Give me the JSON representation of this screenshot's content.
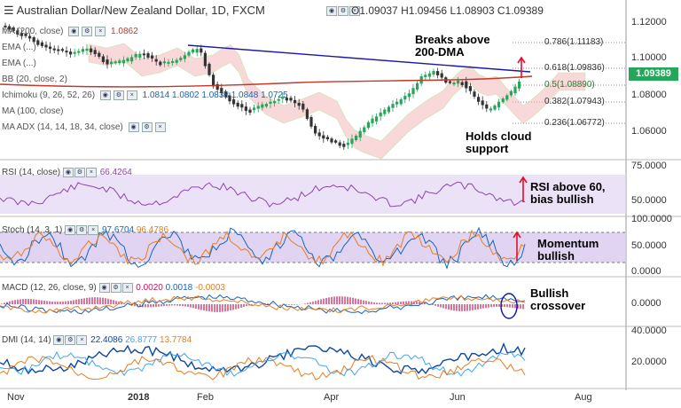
{
  "header": {
    "symbol": "Australian Dollar/New Zealand Dollar, 1D, FXCM",
    "ohlc": {
      "o": "O1.09037",
      "h": "H1.09456",
      "l": "L1.08903",
      "c": "C1.09389"
    }
  },
  "overlay_legends": [
    {
      "label": "MA (200, close)",
      "value": "1.0862"
    },
    {
      "label": "EMA (...)",
      "value": ""
    },
    {
      "label": "EMA (...)",
      "value": ""
    },
    {
      "label": "BB (20, close, 2)",
      "value": ""
    },
    {
      "label": "Ichimoku (9, 26, 52, 26)",
      "value": "1.0814  1.0802  1.0838  1.0848  1.0725"
    },
    {
      "label": "MA (100, close)",
      "value": ""
    },
    {
      "label": "MA ADX (14, 14, 18, 34, close)",
      "value": ""
    }
  ],
  "price_axis": {
    "ticks": [
      "1.12000",
      "1.10000",
      "1.08000",
      "1.06000"
    ],
    "current": "1.09389"
  },
  "fib_levels": [
    "0.786(1.11183)",
    "0.618(1.09836)",
    "0.5(1.08890)",
    "0.382(1.07943)",
    "0.236(1.06772)"
  ],
  "annotations": {
    "breaks": [
      "Breaks above",
      "200-DMA"
    ],
    "holds": [
      "Holds cloud",
      "support"
    ],
    "rsi": [
      "RSI above 60,",
      "bias bullish"
    ],
    "momentum": [
      "Momentum",
      "bullish"
    ],
    "macd": [
      "Bullish",
      "crossover"
    ]
  },
  "rsi": {
    "label": "RSI (14, close)",
    "value": "66.4264",
    "axis": [
      "75.0000",
      "50.0000"
    ]
  },
  "stoch": {
    "label": "Stoch (14, 3, 1)",
    "values": [
      "97.6704",
      "96.4786"
    ],
    "axis": [
      "100.0000",
      "50.0000",
      "0.0000"
    ]
  },
  "macd": {
    "label": "MACD (12, 26, close, 9)",
    "values": [
      "0.0020",
      "0.0018",
      "-0.0003"
    ],
    "axis": [
      "0.0000"
    ]
  },
  "dmi": {
    "label": "DMI (14, 14)",
    "values": [
      "22.4086",
      "26.8777",
      "13.7784"
    ],
    "axis": [
      "40.0000",
      "20.0000"
    ]
  },
  "x_axis": [
    "Nov",
    "2018",
    "Feb",
    "Apr",
    "Jun",
    "Aug"
  ],
  "colors": {
    "bull": "#26a65b",
    "bear": "#333333",
    "ma200": "#c0392b",
    "trend": "#1a1aa8",
    "rsi": "#8e44ad",
    "macd": "#1565c0",
    "signal": "#e67e22",
    "arrow": "#e0102a"
  }
}
